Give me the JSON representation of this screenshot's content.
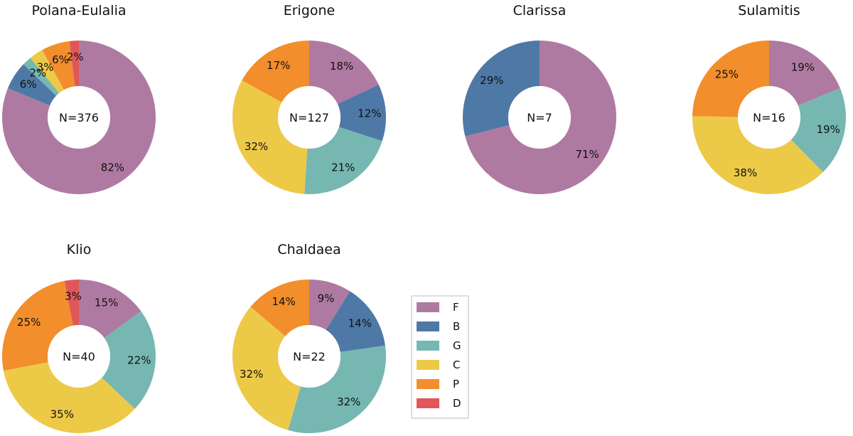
{
  "colors": {
    "F": "#af7aa1",
    "B": "#4e79a7",
    "G": "#76b7b2",
    "C": "#edc948",
    "P": "#f28e2b",
    "D": "#e15759"
  },
  "chart_data": [
    {
      "type": "pie",
      "title": "Polana-Eulalia",
      "center_label": "N=376",
      "slices": [
        {
          "category": "F",
          "value": 82,
          "label": "82%"
        },
        {
          "category": "B",
          "value": 6,
          "label": "6%"
        },
        {
          "category": "G",
          "value": 2,
          "label": "2%"
        },
        {
          "category": "C",
          "value": 3,
          "label": "3%"
        },
        {
          "category": "P",
          "value": 6,
          "label": "6%"
        },
        {
          "category": "D",
          "value": 2,
          "label": "2%"
        }
      ]
    },
    {
      "type": "pie",
      "title": "Erigone",
      "center_label": "N=127",
      "slices": [
        {
          "category": "F",
          "value": 18,
          "label": "18%"
        },
        {
          "category": "B",
          "value": 12,
          "label": "12%"
        },
        {
          "category": "G",
          "value": 21,
          "label": "21%"
        },
        {
          "category": "C",
          "value": 32,
          "label": "32%"
        },
        {
          "category": "P",
          "value": 17,
          "label": "17%"
        }
      ]
    },
    {
      "type": "pie",
      "title": "Clarissa",
      "center_label": "N=7",
      "slices": [
        {
          "category": "F",
          "value": 71,
          "label": "71%"
        },
        {
          "category": "B",
          "value": 29,
          "label": "29%"
        }
      ]
    },
    {
      "type": "pie",
      "title": "Sulamitis",
      "center_label": "N=16",
      "slices": [
        {
          "category": "F",
          "value": 19,
          "label": "19%"
        },
        {
          "category": "G",
          "value": 19,
          "label": "19%"
        },
        {
          "category": "C",
          "value": 38,
          "label": "38%"
        },
        {
          "category": "P",
          "value": 25,
          "label": "25%"
        }
      ]
    },
    {
      "type": "pie",
      "title": "Klio",
      "center_label": "N=40",
      "slices": [
        {
          "category": "F",
          "value": 15,
          "label": "15%"
        },
        {
          "category": "G",
          "value": 22,
          "label": "22%"
        },
        {
          "category": "C",
          "value": 35,
          "label": "35%"
        },
        {
          "category": "P",
          "value": 25,
          "label": "25%"
        },
        {
          "category": "D",
          "value": 3,
          "label": "3%"
        }
      ]
    },
    {
      "type": "pie",
      "title": "Chaldaea",
      "center_label": "N=22",
      "slices": [
        {
          "category": "F",
          "value": 9,
          "label": "9%"
        },
        {
          "category": "B",
          "value": 14,
          "label": "14%"
        },
        {
          "category": "G",
          "value": 32,
          "label": "32%"
        },
        {
          "category": "C",
          "value": 32,
          "label": "32%"
        },
        {
          "category": "P",
          "value": 14,
          "label": "14%"
        }
      ]
    }
  ],
  "legend": {
    "entries": [
      "F",
      "B",
      "G",
      "C",
      "P",
      "D"
    ]
  }
}
